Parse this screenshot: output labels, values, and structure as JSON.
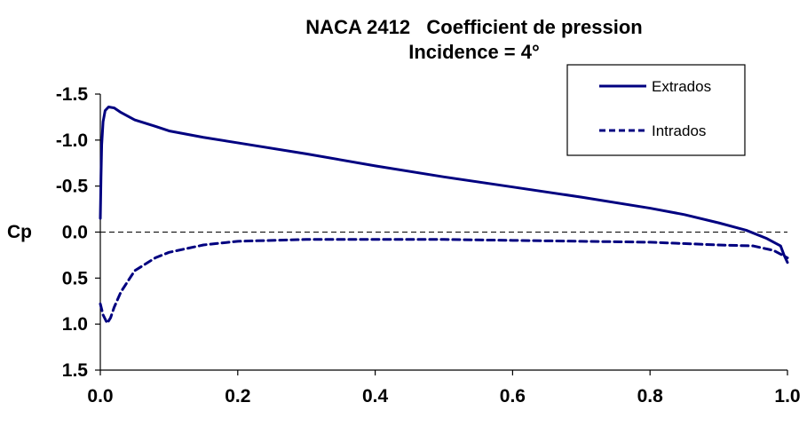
{
  "chart_data": {
    "type": "line",
    "title": "NACA 2412   Coefficient de pression",
    "subtitle": "Incidence = 4°",
    "xlabel": "",
    "ylabel": "Cp",
    "xlim": [
      0,
      1
    ],
    "ylim": [
      -1.5,
      1.5
    ],
    "y_inverted": true,
    "x_ticks": [
      "0.0",
      "0.2",
      "0.4",
      "0.6",
      "0.8",
      "1.0"
    ],
    "y_ticks": [
      "-1.5",
      "-1.0",
      "-0.5",
      "0.0",
      "0.5",
      "1.0",
      "1.5"
    ],
    "grid": false,
    "zero_reference_line": "dashed",
    "legend_position": "top-right",
    "series": [
      {
        "name": "Extrados",
        "style": "solid",
        "color": "#000080",
        "points": [
          [
            0.0,
            -0.15
          ],
          [
            0.001,
            -0.6
          ],
          [
            0.002,
            -0.95
          ],
          [
            0.004,
            -1.2
          ],
          [
            0.007,
            -1.32
          ],
          [
            0.012,
            -1.36
          ],
          [
            0.02,
            -1.35
          ],
          [
            0.03,
            -1.3
          ],
          [
            0.05,
            -1.22
          ],
          [
            0.08,
            -1.15
          ],
          [
            0.1,
            -1.1
          ],
          [
            0.15,
            -1.03
          ],
          [
            0.2,
            -0.97
          ],
          [
            0.3,
            -0.85
          ],
          [
            0.4,
            -0.72
          ],
          [
            0.5,
            -0.6
          ],
          [
            0.6,
            -0.49
          ],
          [
            0.7,
            -0.38
          ],
          [
            0.8,
            -0.26
          ],
          [
            0.85,
            -0.19
          ],
          [
            0.9,
            -0.1
          ],
          [
            0.94,
            -0.02
          ],
          [
            0.97,
            0.07
          ],
          [
            0.99,
            0.15
          ],
          [
            0.995,
            0.25
          ],
          [
            1.0,
            0.33
          ]
        ]
      },
      {
        "name": "Intrados",
        "style": "dashed",
        "color": "#000080",
        "points": [
          [
            0.0,
            0.78
          ],
          [
            0.004,
            0.9
          ],
          [
            0.01,
            0.99
          ],
          [
            0.015,
            0.93
          ],
          [
            0.02,
            0.82
          ],
          [
            0.03,
            0.65
          ],
          [
            0.05,
            0.42
          ],
          [
            0.08,
            0.28
          ],
          [
            0.1,
            0.22
          ],
          [
            0.15,
            0.14
          ],
          [
            0.2,
            0.1
          ],
          [
            0.3,
            0.08
          ],
          [
            0.4,
            0.08
          ],
          [
            0.5,
            0.08
          ],
          [
            0.6,
            0.09
          ],
          [
            0.7,
            0.1
          ],
          [
            0.8,
            0.11
          ],
          [
            0.9,
            0.14
          ],
          [
            0.95,
            0.15
          ],
          [
            0.98,
            0.2
          ],
          [
            1.0,
            0.28
          ]
        ]
      }
    ]
  }
}
